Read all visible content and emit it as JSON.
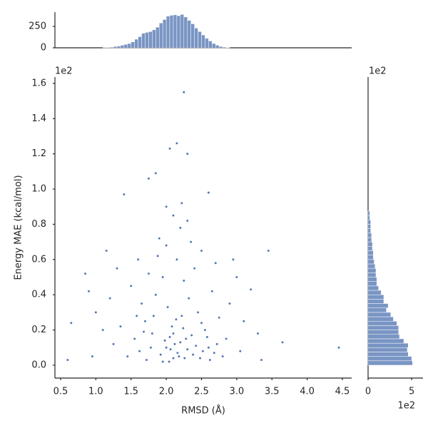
{
  "chart_data": [
    {
      "type": "scatter",
      "xlabel": "RMSD (Å)",
      "ylabel": "Energy MAE (kcal/mol)",
      "y_offset_label": "1e2",
      "color": "#4c72b0",
      "xlim": [
        0.419,
        4.632
      ],
      "ylim": [
        -0.073,
        1.636
      ],
      "xticks": [
        0.5,
        {
          "value": 1,
          "label": "1.0"
        },
        1.5,
        {
          "value": 2,
          "label": "2.0"
        },
        2.5,
        {
          "value": 3,
          "label": "3.0"
        },
        3.5,
        {
          "value": 4,
          "label": "4.0"
        },
        4.5
      ],
      "yticks": [
        {
          "value": 0,
          "label": "0.0"
        },
        0.2,
        0.4,
        0.6,
        0.8,
        {
          "value": 1,
          "label": "1.0"
        },
        1.2,
        1.4,
        1.6
      ],
      "x": [
        2.25,
        2.15,
        2.05,
        2.3,
        1.85,
        4.45,
        3.45,
        3.65,
        0.6,
        0.65,
        0.85,
        1.4,
        2.6,
        1.75,
        2.0,
        2.1,
        2.2,
        1.9,
        2.35,
        2.5,
        1.6,
        2.7,
        1.3,
        3.0,
        3.2,
        1.2,
        0.9,
        1.0,
        1.1,
        1.25,
        1.5,
        1.65,
        1.7,
        1.8,
        1.85,
        1.95,
        2.02,
        2.08,
        2.12,
        2.18,
        2.22,
        2.28,
        2.32,
        2.4,
        2.45,
        2.55,
        2.6,
        2.65,
        2.75,
        2.85,
        2.9,
        3.05,
        3.1,
        1.45,
        1.55,
        1.62,
        1.72,
        1.78,
        1.82,
        1.92,
        1.98,
        2.04,
        2.06,
        2.1,
        2.14,
        2.16,
        2.2,
        2.24,
        2.26,
        2.3,
        2.36,
        2.38,
        2.42,
        2.48,
        2.5,
        2.52,
        2.58,
        2.62,
        2.68,
        2.72,
        2.8,
        1.88,
        2.0,
        2.15,
        2.25,
        1.75,
        2.3,
        1.95,
        2.0,
        2.05,
        2.1,
        1.68,
        1.58,
        1.35,
        0.95,
        3.3,
        3.35,
        2.95,
        1.15,
        2.22
      ],
      "values": [
        1.55,
        1.26,
        1.23,
        1.2,
        1.09,
        0.1,
        0.65,
        0.13,
        0.03,
        0.24,
        0.52,
        0.97,
        0.98,
        1.06,
        0.9,
        0.85,
        0.78,
        0.72,
        0.7,
        0.65,
        0.6,
        0.58,
        0.55,
        0.5,
        0.43,
        0.38,
        0.42,
        0.3,
        0.2,
        0.12,
        0.45,
        0.35,
        0.25,
        0.18,
        0.4,
        0.5,
        0.33,
        0.22,
        0.12,
        0.05,
        0.28,
        0.15,
        0.38,
        0.55,
        0.3,
        0.2,
        0.1,
        0.42,
        0.27,
        0.15,
        0.35,
        0.08,
        0.25,
        0.05,
        0.15,
        0.08,
        0.03,
        0.1,
        0.28,
        0.06,
        0.14,
        0.02,
        0.09,
        0.18,
        0.26,
        0.07,
        0.13,
        0.21,
        0.04,
        0.09,
        0.17,
        0.06,
        0.11,
        0.04,
        0.24,
        0.08,
        0.16,
        0.03,
        0.07,
        0.12,
        0.05,
        0.62,
        0.68,
        0.6,
        0.48,
        0.52,
        0.82,
        0.02,
        0.1,
        0.16,
        0.04,
        0.19,
        0.28,
        0.22,
        0.05,
        0.18,
        0.03,
        0.6,
        0.65,
        0.92
      ]
    },
    {
      "type": "histogram",
      "color": "#4c72b0",
      "xlim": [
        0.419,
        4.632
      ],
      "ylim": [
        0,
        417
      ],
      "yticks": [
        0,
        250
      ],
      "bins": [
        1.1,
        1.15,
        1.2,
        1.25,
        1.3,
        1.35,
        1.4,
        1.45,
        1.5,
        1.55,
        1.6,
        1.65,
        1.7,
        1.75,
        1.8,
        1.85,
        1.9,
        1.95,
        2.0,
        2.05,
        2.1,
        2.15,
        2.2,
        2.25,
        2.3,
        2.35,
        2.4,
        2.45,
        2.5,
        2.55,
        2.6,
        2.65,
        2.7,
        2.75,
        2.8,
        2.85,
        2.9
      ],
      "values": [
        2,
        5,
        8,
        15,
        20,
        30,
        40,
        50,
        70,
        100,
        130,
        170,
        180,
        190,
        210,
        240,
        290,
        330,
        370,
        380,
        385,
        375,
        390,
        360,
        320,
        280,
        230,
        190,
        150,
        110,
        80,
        50,
        30,
        15,
        8,
        4
      ]
    },
    {
      "type": "histogram",
      "orientation": "horizontal",
      "color": "#4c72b0",
      "x_offset_label": "1e2",
      "y_offset_label": "1e2",
      "xlim": [
        0,
        6.3
      ],
      "xticks": [
        0,
        5
      ],
      "ylim": [
        -0.073,
        1.636
      ],
      "bins": [
        0,
        0.025,
        0.05,
        0.075,
        0.1,
        0.125,
        0.15,
        0.175,
        0.2,
        0.225,
        0.25,
        0.275,
        0.3,
        0.325,
        0.35,
        0.375,
        0.4,
        0.425,
        0.45,
        0.475,
        0.5,
        0.525,
        0.55,
        0.575,
        0.6,
        0.625,
        0.65,
        0.675,
        0.7,
        0.725,
        0.75,
        0.775,
        0.8,
        0.825,
        0.85,
        0.875
      ],
      "values": [
        5.1,
        5.0,
        4.6,
        4.5,
        4.6,
        4.1,
        3.6,
        3.5,
        3.5,
        3.3,
        2.9,
        2.6,
        2.1,
        2.3,
        1.8,
        1.8,
        1.5,
        1.2,
        1.0,
        1.0,
        0.9,
        0.9,
        0.8,
        0.7,
        0.6,
        0.6,
        0.5,
        0.5,
        0.4,
        0.4,
        0.3,
        0.3,
        0.3,
        0.2,
        0.2
      ]
    }
  ]
}
